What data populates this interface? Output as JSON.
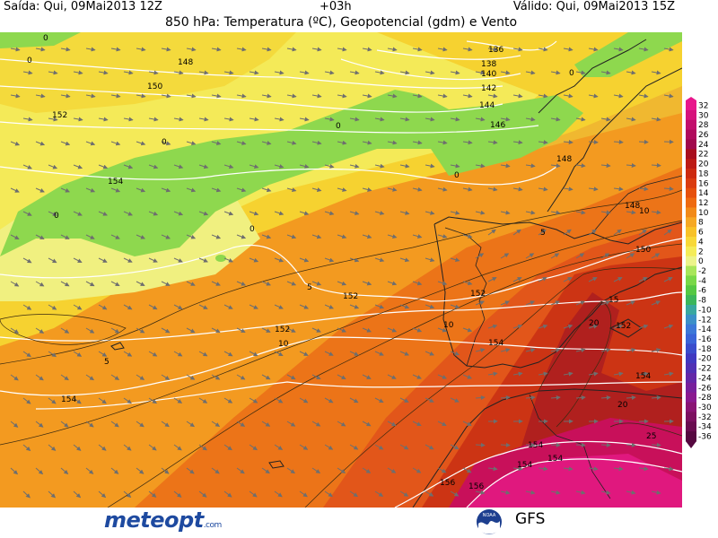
{
  "header": {
    "issued": "Saída: Qui, 09Mai2013 12Z",
    "lead": "+03h",
    "valid": "Válido: Qui, 09Mai2013 15Z",
    "title": "850 hPa: Temperatura (ºC), Geopotencial (gdm) e Vento"
  },
  "legend": {
    "labels": [
      "32",
      "30",
      "28",
      "26",
      "24",
      "22",
      "20",
      "18",
      "16",
      "14",
      "12",
      "10",
      "8",
      "6",
      "4",
      "2",
      "0",
      "-2",
      "-4",
      "-6",
      "-8",
      "-10",
      "-12",
      "-14",
      "-16",
      "-18",
      "-20",
      "-22",
      "-24",
      "-26",
      "-28",
      "-30",
      "-32",
      "-34",
      "-36"
    ],
    "colors": [
      "#e8168c",
      "#d6127c",
      "#c20e6c",
      "#b00a5c",
      "#a0084c",
      "#a80e1e",
      "#bc1a14",
      "#cc2a10",
      "#da3c10",
      "#e6500c",
      "#ee6a10",
      "#f28a18",
      "#f6a824",
      "#f8c228",
      "#f8d838",
      "#f4ec58",
      "#ecf48a",
      "#a8e65a",
      "#78d848",
      "#54c844",
      "#3cb65c",
      "#3aa8a0",
      "#3c90c8",
      "#3c78d8",
      "#3a64d8",
      "#3a4ccc",
      "#4038c0",
      "#5030b4",
      "#6428a8",
      "#78209c",
      "#8a1a90",
      "#8a1474",
      "#7c1060",
      "#6a0c50",
      "#560840"
    ]
  },
  "map": {
    "height_labels": [
      "136",
      "138",
      "140",
      "142",
      "144",
      "146",
      "148",
      "148",
      "150",
      "152",
      "154",
      "148",
      "150",
      "152",
      "152",
      "152",
      "154",
      "154",
      "152",
      "154",
      "154",
      "154",
      "154",
      "156",
      "156"
    ],
    "temp_labels": [
      "0",
      "0",
      "0",
      "0",
      "0",
      "0",
      "0",
      "0",
      "5",
      "5",
      "5",
      "10",
      "10",
      "10",
      "15",
      "20",
      "20",
      "25"
    ]
  },
  "branding": {
    "logo_text": "meteopt",
    "logo_suffix": ".com",
    "noaa_text": "NOAA",
    "model": "GFS"
  }
}
